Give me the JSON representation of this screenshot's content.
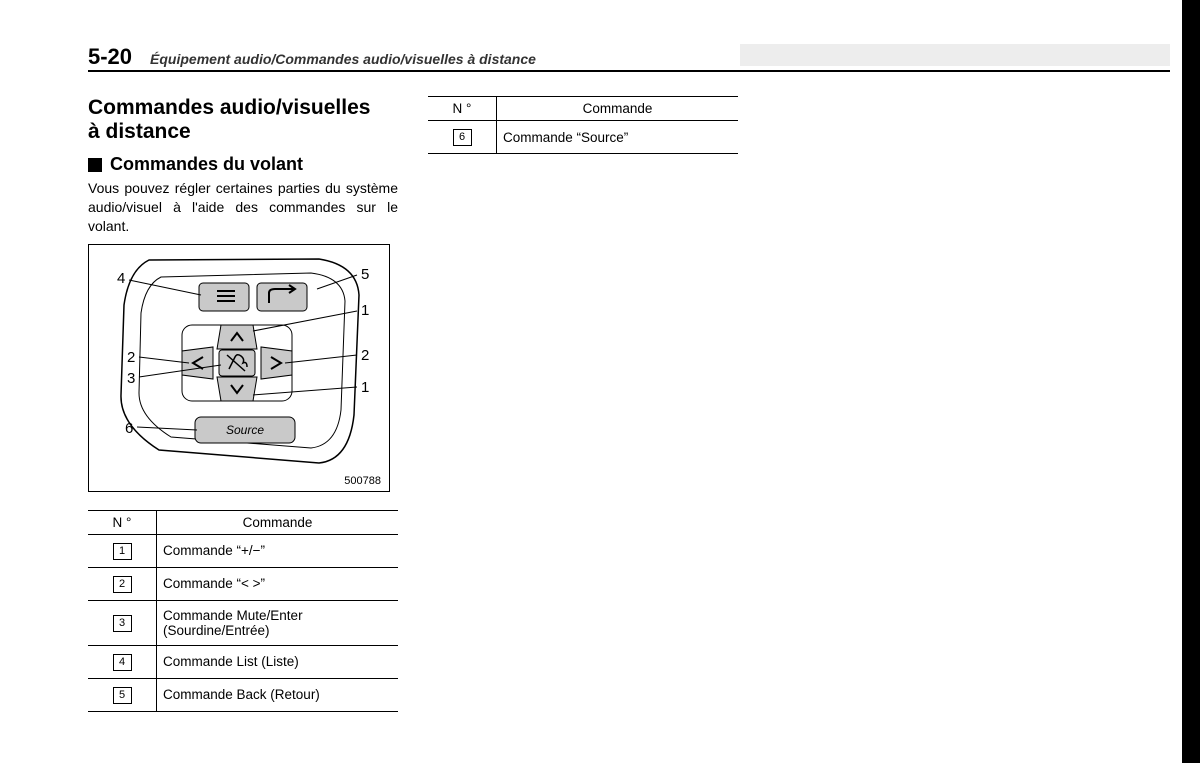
{
  "page_number": "5-20",
  "header_title": "Équipement audio/Commandes audio/visuelles à distance",
  "section_title_line1": "Commandes audio/visuelles",
  "section_title_line2": "à distance",
  "subsection_title": "Commandes du volant",
  "intro_text": "Vous pouvez régler certaines parties du système audio/visuel à l'aide des commandes sur le volant.",
  "diagram_code": "500788",
  "diagram_labels": {
    "l1": "1",
    "l2": "2",
    "l3": "3",
    "l4": "4",
    "l5": "5",
    "l6": "6",
    "source_btn": "Source"
  },
  "table_header_num": "N °",
  "table_header_cmd": "Commande",
  "table1_rows": [
    {
      "n": "1",
      "cmd": "Commande “+/−”"
    },
    {
      "n": "2",
      "cmd": "Commande “< >”"
    },
    {
      "n": "3",
      "cmd": "Commande Mute/Enter (Sourdine/Entrée)"
    },
    {
      "n": "4",
      "cmd": "Commande List (Liste)"
    },
    {
      "n": "5",
      "cmd": "Commande Back (Retour)"
    }
  ],
  "table2_rows": [
    {
      "n": "6",
      "cmd": "Commande “Source”"
    }
  ]
}
